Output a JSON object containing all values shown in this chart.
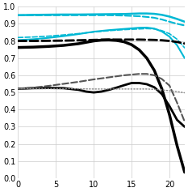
{
  "xlim": [
    0,
    22
  ],
  "ylim": [
    0,
    1.0
  ],
  "xticks": [
    0,
    5,
    10,
    15,
    20
  ],
  "yticks": [
    0,
    0.1,
    0.2,
    0.3,
    0.4,
    0.5,
    0.6,
    0.7,
    0.8,
    0.9,
    1
  ],
  "background": "#ffffff",
  "grid_color": "#cccccc",
  "curves": [
    {
      "x": [
        0,
        1,
        2,
        4,
        6,
        8,
        10,
        12,
        14,
        16,
        17,
        18,
        19,
        20,
        21,
        22
      ],
      "y": [
        0.95,
        0.951,
        0.952,
        0.953,
        0.954,
        0.954,
        0.955,
        0.956,
        0.957,
        0.96,
        0.96,
        0.958,
        0.952,
        0.942,
        0.928,
        0.912
      ],
      "color": "#00b8d4",
      "lw": 1.8,
      "ls": "-"
    },
    {
      "x": [
        0,
        2,
        4,
        6,
        8,
        10,
        12,
        14,
        16,
        17,
        18,
        19,
        20,
        21,
        22
      ],
      "y": [
        0.95,
        0.95,
        0.95,
        0.95,
        0.95,
        0.95,
        0.95,
        0.948,
        0.944,
        0.94,
        0.935,
        0.925,
        0.912,
        0.9,
        0.89
      ],
      "color": "#00b8d4",
      "lw": 1.5,
      "ls": "--"
    },
    {
      "x": [
        0,
        2,
        4,
        6,
        8,
        10,
        12,
        14,
        16,
        17,
        18,
        19,
        20,
        21,
        22
      ],
      "y": [
        0.805,
        0.81,
        0.818,
        0.828,
        0.84,
        0.854,
        0.863,
        0.87,
        0.877,
        0.878,
        0.872,
        0.855,
        0.825,
        0.775,
        0.7
      ],
      "color": "#00b8d4",
      "lw": 1.5,
      "ls": "-"
    },
    {
      "x": [
        0,
        2,
        4,
        6,
        8,
        10,
        12,
        14,
        16,
        17,
        18,
        19,
        20,
        21,
        22
      ],
      "y": [
        0.82,
        0.823,
        0.828,
        0.835,
        0.843,
        0.852,
        0.86,
        0.866,
        0.87,
        0.872,
        0.87,
        0.86,
        0.842,
        0.81,
        0.76
      ],
      "color": "#00b8d4",
      "lw": 1.2,
      "ls": "--"
    },
    {
      "x": [
        0,
        2,
        4,
        6,
        8,
        10,
        11,
        12,
        13,
        14,
        15,
        16,
        17,
        18,
        19,
        20,
        21,
        22
      ],
      "y": [
        0.762,
        0.764,
        0.768,
        0.774,
        0.784,
        0.8,
        0.805,
        0.806,
        0.803,
        0.795,
        0.778,
        0.748,
        0.7,
        0.628,
        0.52,
        0.37,
        0.19,
        0.035
      ],
      "color": "#000000",
      "lw": 2.5,
      "ls": "-"
    },
    {
      "x": [
        0,
        2,
        4,
        6,
        8,
        10,
        12,
        14,
        16,
        17,
        18,
        19,
        20,
        21,
        22
      ],
      "y": [
        0.8,
        0.8,
        0.801,
        0.802,
        0.804,
        0.806,
        0.808,
        0.808,
        0.808,
        0.807,
        0.806,
        0.804,
        0.8,
        0.794,
        0.785
      ],
      "color": "#000000",
      "lw": 2.0,
      "ls": "--"
    },
    {
      "x": [
        0,
        1,
        2,
        4,
        6,
        8,
        9,
        10,
        11,
        12,
        13,
        14,
        15,
        16,
        17,
        18,
        19,
        20,
        21,
        22
      ],
      "y": [
        0.522,
        0.523,
        0.525,
        0.526,
        0.525,
        0.515,
        0.505,
        0.5,
        0.505,
        0.515,
        0.528,
        0.542,
        0.555,
        0.555,
        0.548,
        0.53,
        0.49,
        0.42,
        0.34,
        0.3
      ],
      "color": "#000000",
      "lw": 2.0,
      "ls": "-"
    },
    {
      "x": [
        0,
        2,
        4,
        6,
        8,
        10,
        12,
        14,
        16,
        17,
        18,
        19,
        20,
        21,
        22
      ],
      "y": [
        0.522,
        0.528,
        0.538,
        0.55,
        0.562,
        0.576,
        0.588,
        0.6,
        0.608,
        0.608,
        0.6,
        0.578,
        0.54,
        0.44,
        0.33
      ],
      "color": "#555555",
      "lw": 1.5,
      "ls": "--"
    },
    {
      "x": [
        0,
        2,
        4,
        6,
        8,
        10,
        12,
        14,
        16,
        17,
        18,
        19,
        20,
        21,
        22
      ],
      "y": [
        0.522,
        0.522,
        0.522,
        0.522,
        0.521,
        0.52,
        0.52,
        0.52,
        0.52,
        0.52,
        0.518,
        0.515,
        0.51,
        0.505,
        0.498
      ],
      "color": "#888888",
      "lw": 1.0,
      "ls": ":"
    }
  ]
}
